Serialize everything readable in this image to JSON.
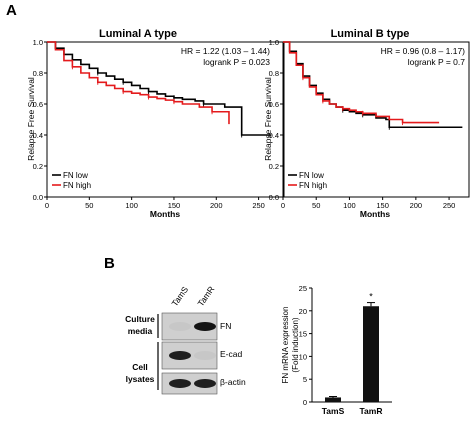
{
  "figure": {
    "panel_a_letter": "A",
    "panel_b_letter": "B"
  },
  "colors": {
    "fn_low": "#000000",
    "fn_high": "#e41a1c",
    "bar_fill": "#111111"
  },
  "chart_data": [
    {
      "type": "line",
      "title": "Luminal A type",
      "xlabel": "Months",
      "ylabel": "Relapse Free Survival",
      "xlim": [
        0,
        280
      ],
      "ylim": [
        0,
        1.0
      ],
      "x_ticks": [
        "0",
        "50",
        "100",
        "150",
        "200",
        "250"
      ],
      "y_ticks": [
        "0.0",
        "0.2",
        "0.4",
        "0.6",
        "0.8",
        "1.0"
      ],
      "annotations": [
        "HR = 1.22 (1.03 – 1.44)",
        "logrank P = 0.023"
      ],
      "legend_position": "bottom-left",
      "series": [
        {
          "name": "FN low",
          "color": "#000000",
          "x": [
            0,
            10,
            20,
            30,
            40,
            50,
            60,
            70,
            80,
            90,
            100,
            110,
            120,
            130,
            140,
            150,
            160,
            175,
            185,
            200,
            210,
            230,
            265
          ],
          "y": [
            1.0,
            0.96,
            0.92,
            0.885,
            0.855,
            0.83,
            0.8,
            0.78,
            0.76,
            0.74,
            0.72,
            0.7,
            0.68,
            0.665,
            0.65,
            0.64,
            0.63,
            0.62,
            0.6,
            0.6,
            0.58,
            0.4,
            0.4
          ]
        },
        {
          "name": "FN high",
          "color": "#e41a1c",
          "x": [
            0,
            10,
            20,
            30,
            40,
            50,
            60,
            70,
            80,
            90,
            100,
            110,
            120,
            130,
            140,
            150,
            160,
            180,
            195,
            215
          ],
          "y": [
            1.0,
            0.95,
            0.88,
            0.84,
            0.8,
            0.77,
            0.74,
            0.72,
            0.7,
            0.68,
            0.67,
            0.66,
            0.645,
            0.635,
            0.625,
            0.615,
            0.6,
            0.58,
            0.55,
            0.47
          ]
        }
      ]
    },
    {
      "type": "line",
      "title": "Luminal B type",
      "xlabel": "Months",
      "ylabel": "Relapse Free Survival",
      "xlim": [
        0,
        280
      ],
      "ylim": [
        0,
        1.0
      ],
      "x_ticks": [
        "0",
        "50",
        "100",
        "150",
        "200",
        "250"
      ],
      "y_ticks": [
        "0.0",
        "0.2",
        "0.4",
        "0.6",
        "0.8",
        "1.0"
      ],
      "annotations": [
        "HR = 0.96 (0.8 – 1.17)",
        "logrank P = 0.7"
      ],
      "legend_position": "bottom-left",
      "series": [
        {
          "name": "FN low",
          "color": "#000000",
          "x": [
            0,
            10,
            20,
            30,
            40,
            50,
            60,
            70,
            80,
            90,
            100,
            110,
            120,
            140,
            155,
            160,
            210,
            270
          ],
          "y": [
            1.0,
            0.94,
            0.86,
            0.78,
            0.72,
            0.67,
            0.63,
            0.6,
            0.58,
            0.56,
            0.55,
            0.54,
            0.53,
            0.51,
            0.5,
            0.45,
            0.45,
            0.45
          ]
        },
        {
          "name": "FN high",
          "color": "#e41a1c",
          "x": [
            0,
            10,
            20,
            30,
            40,
            50,
            60,
            70,
            80,
            90,
            100,
            110,
            120,
            140,
            160,
            180,
            200,
            235
          ],
          "y": [
            1.0,
            0.93,
            0.85,
            0.77,
            0.71,
            0.66,
            0.62,
            0.6,
            0.58,
            0.57,
            0.56,
            0.55,
            0.54,
            0.52,
            0.5,
            0.48,
            0.48,
            0.48
          ]
        }
      ]
    },
    {
      "type": "bar",
      "ylabel": "FN mRNA expression\n(Fold induction)",
      "categories": [
        "TamS",
        "TamR"
      ],
      "values": [
        1,
        21
      ],
      "errors": [
        0.2,
        0.8
      ],
      "significance": [
        "",
        "*"
      ],
      "ylim": [
        0,
        25
      ],
      "y_ticks": [
        "0",
        "5",
        "10",
        "15",
        "20",
        "25"
      ]
    }
  ],
  "western_blot": {
    "lane_labels": [
      "TamS",
      "TamR"
    ],
    "group_labels": [
      "Culture\nmedia",
      "Cell\nlysates"
    ],
    "band_labels": [
      "FN",
      "E-cad",
      "β-actin"
    ],
    "intensities": [
      [
        0.08,
        0.95
      ],
      [
        0.9,
        0.08
      ],
      [
        0.9,
        0.9
      ]
    ]
  }
}
